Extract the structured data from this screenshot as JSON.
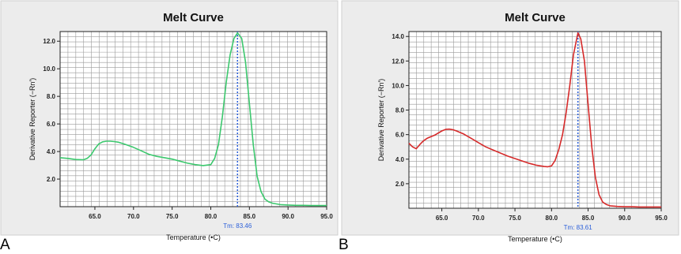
{
  "chart_data": [
    {
      "panel_label": "A",
      "type": "line",
      "title": "Melt Curve",
      "xlabel": "Temperature (•C)",
      "ylabel": "Derivative Reporter (−Rn′)",
      "xlim": [
        60.5,
        95.0
      ],
      "ylim": [
        0.0,
        12.7
      ],
      "xticks": [
        "65.0",
        "70.0",
        "75.0",
        "80.0",
        "85.0",
        "90.0",
        "95.0"
      ],
      "yticks": [
        "2.0",
        "4.0",
        "6.0",
        "8.0",
        "10.0",
        "12.0"
      ],
      "grid": true,
      "series": [
        {
          "color": "#3cc86e",
          "x": [
            60.5,
            61.5,
            62.5,
            63.5,
            64.0,
            64.5,
            65.0,
            65.5,
            66.0,
            66.5,
            67.0,
            67.5,
            68.0,
            68.5,
            69.0,
            70.0,
            71.0,
            72.0,
            73.0,
            74.0,
            75.0,
            76.0,
            77.0,
            78.0,
            79.0,
            80.0,
            80.5,
            81.0,
            81.5,
            82.0,
            82.5,
            83.0,
            83.46,
            84.0,
            84.5,
            85.0,
            85.5,
            86.0,
            86.5,
            87.0,
            87.5,
            88.0,
            89.0,
            90.0,
            91.0,
            92.0,
            93.0,
            94.0,
            95.0
          ],
          "y": [
            3.55,
            3.5,
            3.42,
            3.4,
            3.5,
            3.75,
            4.2,
            4.55,
            4.7,
            4.75,
            4.75,
            4.72,
            4.68,
            4.6,
            4.5,
            4.3,
            4.05,
            3.8,
            3.65,
            3.55,
            3.45,
            3.3,
            3.15,
            3.05,
            2.98,
            3.05,
            3.5,
            4.5,
            6.5,
            9.0,
            11.0,
            12.2,
            12.6,
            12.2,
            10.5,
            7.5,
            4.5,
            2.2,
            1.1,
            0.55,
            0.35,
            0.25,
            0.15,
            0.12,
            0.1,
            0.1,
            0.08,
            0.08,
            0.08
          ]
        }
      ],
      "marker": {
        "x": 83.46,
        "label": "Tm: 83.46",
        "color": "#2b5fd9"
      }
    },
    {
      "panel_label": "B",
      "type": "line",
      "title": "Melt Curve",
      "xlabel": "Temperature (•C)",
      "ylabel": "Derivative Reporter (−Rn′)",
      "xlim": [
        60.5,
        95.0
      ],
      "ylim": [
        0.0,
        14.4
      ],
      "xticks": [
        "65.0",
        "70.0",
        "75.0",
        "80.0",
        "85.0",
        "90.0",
        "95.0"
      ],
      "yticks": [
        "2.0",
        "4.0",
        "6.0",
        "8.0",
        "10.0",
        "12.0",
        "14.0"
      ],
      "grid": true,
      "series": [
        {
          "color": "#d62a2a",
          "x": [
            60.5,
            61.0,
            61.5,
            62.0,
            62.5,
            63.0,
            64.0,
            65.0,
            65.5,
            66.0,
            66.5,
            67.0,
            68.0,
            69.0,
            70.0,
            71.0,
            72.0,
            73.0,
            74.0,
            75.0,
            76.0,
            77.0,
            78.0,
            79.0,
            79.5,
            80.0,
            80.5,
            81.0,
            81.5,
            82.0,
            82.5,
            83.0,
            83.61,
            84.0,
            84.5,
            85.0,
            85.5,
            86.0,
            86.5,
            87.0,
            87.5,
            88.0,
            89.0,
            90.0,
            91.0,
            92.0,
            93.0,
            94.0,
            95.0
          ],
          "y": [
            5.3,
            5.0,
            4.85,
            5.2,
            5.5,
            5.7,
            5.95,
            6.3,
            6.42,
            6.45,
            6.4,
            6.3,
            6.05,
            5.7,
            5.35,
            5.0,
            4.75,
            4.5,
            4.25,
            4.05,
            3.85,
            3.65,
            3.5,
            3.4,
            3.38,
            3.45,
            3.9,
            4.8,
            6.0,
            7.8,
            10.0,
            12.5,
            14.3,
            13.8,
            12.0,
            8.5,
            5.0,
            2.5,
            1.1,
            0.5,
            0.3,
            0.2,
            0.15,
            0.12,
            0.12,
            0.1,
            0.1,
            0.1,
            0.1
          ]
        }
      ],
      "marker": {
        "x": 83.61,
        "label": "Tm: 83.61",
        "color": "#2b5fd9"
      }
    }
  ]
}
